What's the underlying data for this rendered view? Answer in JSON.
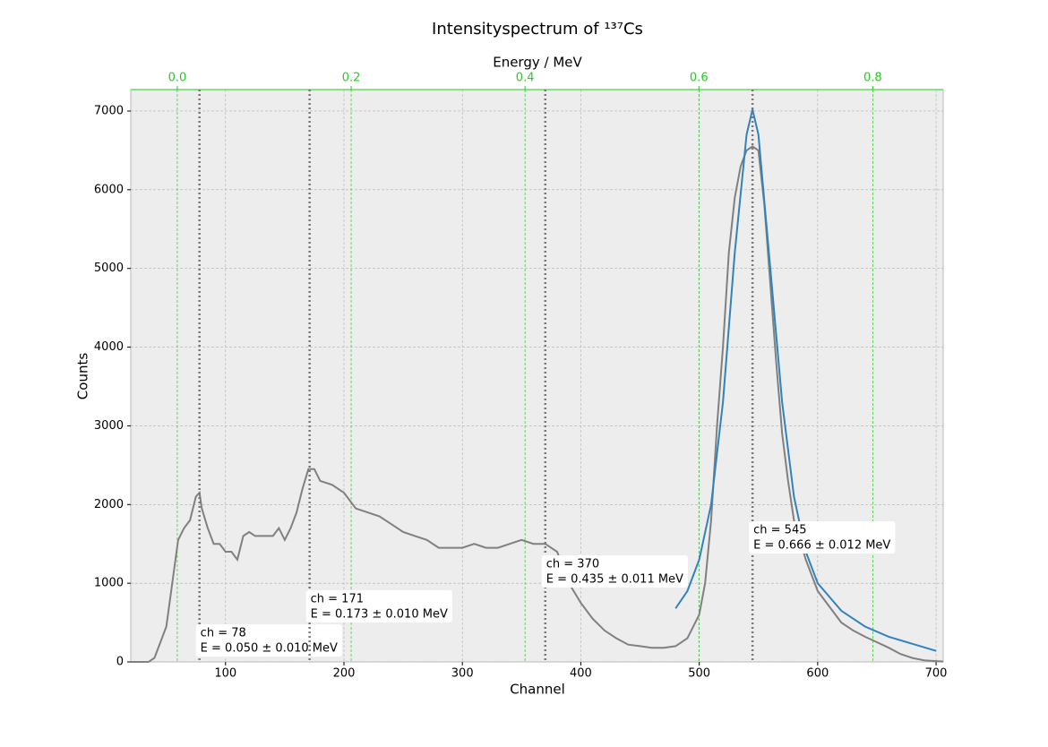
{
  "chart_data": {
    "type": "line",
    "title": "Intensityspectrum of ¹³⁷Cs",
    "xlabel": "Channel",
    "ylabel": "Counts",
    "x2label": "Energy / MeV",
    "xlim": [
      20,
      706
    ],
    "ylim": [
      0,
      7273
    ],
    "xticks": [
      100,
      200,
      300,
      400,
      500,
      600,
      700
    ],
    "yticks": [
      0,
      1000,
      2000,
      3000,
      4000,
      5000,
      6000,
      7000
    ],
    "x2lim": [
      -0.0535,
      0.881
    ],
    "x2ticks": [
      {
        "value": 0,
        "label": "0.0"
      },
      0.2,
      0.4,
      0.6,
      0.8
    ],
    "x2color": "#22cc22",
    "grid": true,
    "series": [
      {
        "color": "#808080",
        "x": [
          20,
          35,
          40,
          45,
          50,
          55,
          60,
          65,
          70,
          75,
          78,
          80,
          85,
          90,
          95,
          100,
          105,
          110,
          115,
          120,
          125,
          130,
          135,
          140,
          145,
          150,
          155,
          160,
          165,
          170,
          175,
          180,
          190,
          200,
          210,
          220,
          230,
          240,
          250,
          260,
          270,
          280,
          290,
          300,
          310,
          320,
          330,
          340,
          350,
          360,
          370,
          380,
          390,
          400,
          410,
          420,
          430,
          440,
          450,
          460,
          470,
          480,
          490,
          500,
          505,
          510,
          515,
          520,
          525,
          530,
          535,
          540,
          545,
          550,
          555,
          560,
          565,
          570,
          575,
          580,
          590,
          600,
          610,
          620,
          630,
          640,
          650,
          660,
          670,
          680,
          690,
          700,
          706
        ],
        "values": [
          0,
          0,
          50,
          250,
          450,
          1000,
          1550,
          1700,
          1800,
          2100,
          2150,
          1950,
          1700,
          1500,
          1500,
          1400,
          1400,
          1300,
          1600,
          1650,
          1600,
          1600,
          1600,
          1600,
          1700,
          1550,
          1700,
          1900,
          2200,
          2450,
          2450,
          2300,
          2250,
          2150,
          1950,
          1900,
          1850,
          1750,
          1650,
          1600,
          1550,
          1450,
          1450,
          1450,
          1500,
          1450,
          1450,
          1500,
          1550,
          1500,
          1500,
          1400,
          1000,
          750,
          550,
          400,
          300,
          220,
          200,
          180,
          180,
          200,
          300,
          600,
          1000,
          1800,
          3000,
          4000,
          5200,
          5900,
          6300,
          6500,
          6550,
          6500,
          5800,
          4800,
          3800,
          2900,
          2300,
          1800,
          1300,
          900,
          700,
          500,
          400,
          320,
          250,
          180,
          100,
          50,
          20,
          10,
          5
        ]
      },
      {
        "color": "#3182bd",
        "x": [
          480,
          490,
          500,
          510,
          520,
          530,
          540,
          545,
          550,
          560,
          570,
          580,
          590,
          600,
          620,
          640,
          660,
          680,
          700
        ],
        "values": [
          680,
          900,
          1300,
          2000,
          3300,
          5200,
          6700,
          7020,
          6700,
          5000,
          3300,
          2100,
          1400,
          1000,
          650,
          450,
          320,
          230,
          140
        ]
      }
    ],
    "annotations": [
      {
        "x": 78,
        "label": "ch = 78",
        "energy": "E  = 0.050 ± 0.010 MeV"
      },
      {
        "x": 171,
        "label": "ch = 171",
        "energy": "E  = 0.173 ± 0.010 MeV"
      },
      {
        "x": 370,
        "label": "ch = 370",
        "energy": "E  = 0.435 ± 0.011 MeV"
      },
      {
        "x": 545,
        "label": "ch = 545",
        "energy": "E  = 0.666 ± 0.012 MeV"
      }
    ]
  }
}
